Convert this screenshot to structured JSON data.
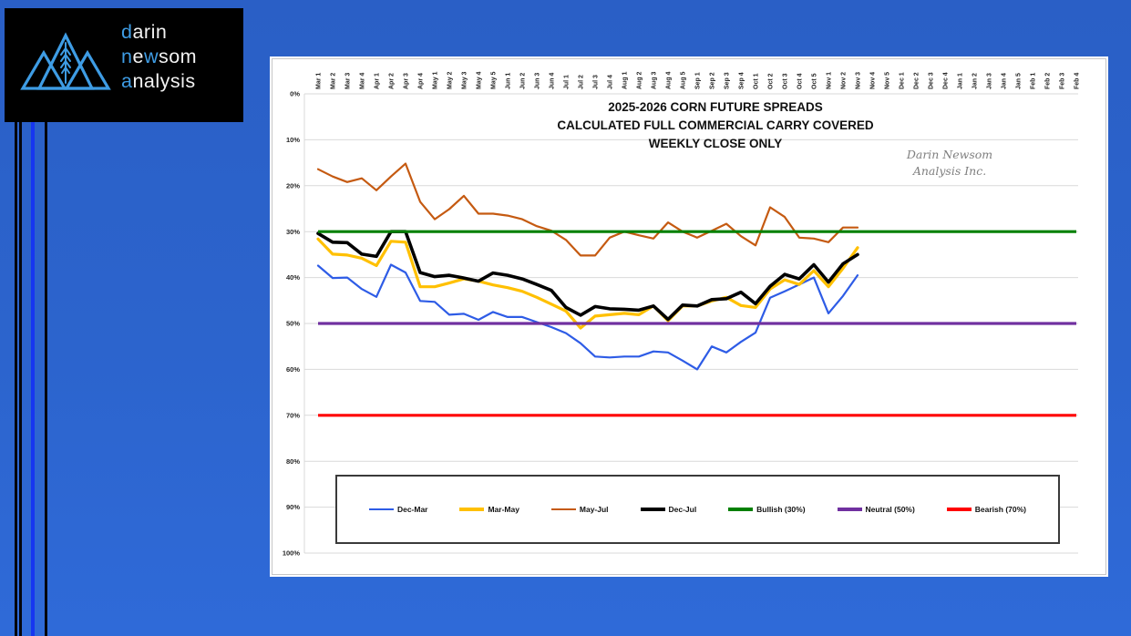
{
  "desktop": {
    "bg_top": "#2a5fc6",
    "bg_bottom": "#2f6ad8",
    "stripes": [
      {
        "x": 16,
        "w": 3,
        "color": "#05060c"
      },
      {
        "x": 21,
        "w": 2.5,
        "color": "#05060c"
      },
      {
        "x": 33.5,
        "w": 4,
        "color": "#1636f0"
      },
      {
        "x": 48.5,
        "w": 3.5,
        "color": "#05060c"
      }
    ]
  },
  "logo": {
    "bg": "#000000",
    "accent": "#3e9ce4",
    "text_color": "#f2f2f2",
    "lines": [
      [
        {
          "t": "d",
          "accent": true
        },
        {
          "t": "arin",
          "accent": false
        }
      ],
      [
        {
          "t": "n",
          "accent": true
        },
        {
          "t": "e",
          "accent": false
        },
        {
          "t": "w",
          "accent": true
        },
        {
          "t": "som",
          "accent": false
        }
      ],
      [
        {
          "t": "a",
          "accent": true
        },
        {
          "t": "nalysis",
          "accent": false
        }
      ]
    ]
  },
  "chart_data": {
    "type": "line",
    "title_lines": [
      "2025-2026 CORN FUTURE SPREADS",
      "CALCULATED FULL COMMERCIAL CARRY COVERED",
      "WEEKLY CLOSE ONLY"
    ],
    "watermark_lines": [
      "Darin Newsom",
      "Analysis Inc."
    ],
    "grid": true,
    "grid_color": "#d9d9d9",
    "tick_color": "#262626",
    "y_axis": {
      "min": 0,
      "max": 100,
      "step": 10,
      "inverted": true,
      "unit": "%"
    },
    "y_tick_labels": [
      "0%",
      "10%",
      "20%",
      "30%",
      "40%",
      "50%",
      "60%",
      "70%",
      "80%",
      "90%",
      "100%"
    ],
    "x_categories": [
      "Mar 1",
      "Mar 2",
      "Mar 3",
      "Mar 4",
      "Apr 1",
      "Apr 2",
      "Apr 3",
      "Apr 4",
      "May 1",
      "May 2",
      "May 3",
      "May 4",
      "May 5",
      "Jun 1",
      "Jun 2",
      "Jun 3",
      "Jun 4",
      "Jul 1",
      "Jul 2",
      "Jul 3",
      "Jul 4",
      "Aug 1",
      "Aug 2",
      "Aug 3",
      "Aug 4",
      "Aug 5",
      "Sep 1",
      "Sep 2",
      "Sep 3",
      "Sep 4",
      "Oct 1",
      "Oct 2",
      "Oct 3",
      "Oct 4",
      "Oct 5",
      "Nov 1",
      "Nov 2",
      "Nov 3",
      "Nov 4",
      "Nov 5",
      "Dec 1",
      "Dec 2",
      "Dec 3",
      "Dec 4",
      "Jan 1",
      "Jan 2",
      "Jan 3",
      "Jan 4",
      "Jan 5",
      "Feb 1",
      "Feb 2",
      "Feb 3",
      "Feb 4"
    ],
    "series": [
      {
        "name": "Dec-Mar",
        "color": "#2e5ce6",
        "width": 2.2,
        "values": [
          37.4,
          40.1,
          40,
          42.5,
          44.2,
          37.2,
          38.9,
          45.1,
          45.3,
          48.1,
          47.9,
          49.2,
          47.5,
          48.6,
          48.6,
          49.7,
          50.8,
          52.1,
          54.3,
          57.2,
          57.4,
          57.2,
          57.2,
          56.1,
          56.3,
          58.1,
          60,
          55,
          56.3,
          54,
          52,
          44.4,
          43,
          41.5,
          40,
          47.8,
          44,
          39.5
        ]
      },
      {
        "name": "Mar-May",
        "color": "#ffc000",
        "width": 3.2,
        "values": [
          31.6,
          34.9,
          35.1,
          35.8,
          37.4,
          32.1,
          32.3,
          42,
          42,
          41.2,
          40.3,
          40.8,
          41.6,
          42.2,
          43,
          44.3,
          45.8,
          47.3,
          51,
          48.4,
          48.1,
          47.8,
          48.1,
          46.2,
          49.4,
          46.2,
          46.2,
          45.1,
          44.3,
          46.1,
          46.5,
          42.5,
          40.5,
          41.5,
          38.5,
          42,
          38,
          33.5
        ]
      },
      {
        "name": "May-Jul",
        "color": "#c55a11",
        "width": 2.2,
        "values": [
          16.4,
          18,
          19.2,
          18.4,
          21,
          18,
          15.2,
          23.5,
          27.3,
          25.1,
          22.2,
          26.1,
          26.1,
          26.5,
          27.3,
          28.8,
          29.8,
          31.8,
          35.2,
          35.2,
          31.3,
          30,
          30.8,
          31.5,
          28,
          30,
          31.3,
          29.8,
          28.3,
          31,
          33,
          24.7,
          26.8,
          31.3,
          31.5,
          32.3,
          29.1,
          29.1
        ]
      },
      {
        "name": "Dec-Jul",
        "color": "#000000",
        "width": 3.6,
        "values": [
          30.4,
          32.3,
          32.4,
          34.9,
          35.4,
          30,
          30,
          38.9,
          39.8,
          39.5,
          40.1,
          40.8,
          39,
          39.5,
          40.3,
          41.5,
          42.8,
          46.5,
          48.2,
          46.3,
          46.8,
          46.9,
          47.1,
          46.2,
          49.1,
          46,
          46.2,
          44.8,
          44.6,
          43.2,
          45.7,
          41.9,
          39.3,
          40.3,
          37.2,
          41,
          37,
          35
        ]
      }
    ],
    "reference_lines": [
      {
        "name": "Bullish (30%)",
        "value": 30,
        "color": "#008000",
        "width": 3.2
      },
      {
        "name": "Neutral (50%)",
        "value": 50,
        "color": "#7030a0",
        "width": 3.2
      },
      {
        "name": "Bearish (70%)",
        "value": 70,
        "color": "#ff0000",
        "width": 3.2
      }
    ],
    "legend_position": "bottom"
  }
}
